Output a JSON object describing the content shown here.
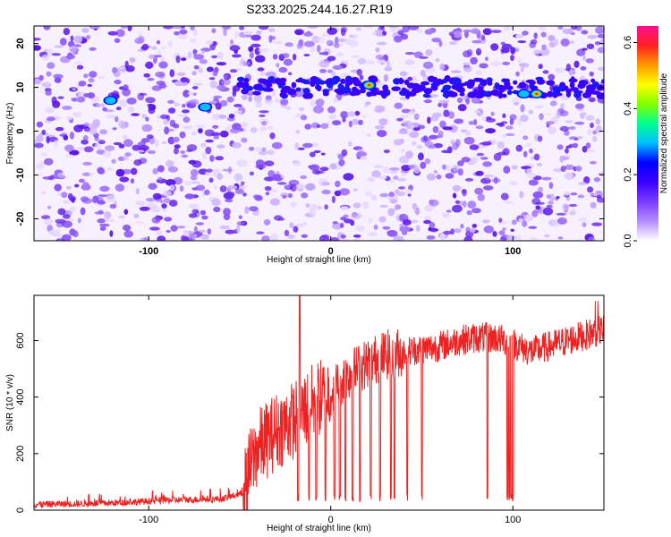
{
  "title": "S233.2025.244.16.27.R19",
  "chart_data": [
    {
      "type": "heatmap",
      "xlabel": "Height of straight line (km)",
      "ylabel": "Frequency (Hz)",
      "xlim": [
        -163,
        150
      ],
      "ylim": [
        -25,
        24
      ],
      "x_ticks": [
        -100,
        0,
        100
      ],
      "y_ticks": [
        -20,
        -10,
        0,
        10,
        20
      ],
      "colorbar": {
        "label": "Normalized spectral amplitude",
        "range": [
          0.0,
          0.65
        ],
        "ticks": [
          0.0,
          0.2,
          0.4,
          0.6
        ],
        "tick_labels": [
          "0.0",
          "0.2",
          "0.4",
          "0.6"
        ],
        "colors": [
          "#ffffff",
          "#b48cff",
          "#7a3cff",
          "#3a00ff",
          "#0000ff",
          "#00bfff",
          "#00ff90",
          "#80ff00",
          "#ffff00",
          "#ff9900",
          "#ff2020",
          "#ff1090"
        ]
      },
      "band": {
        "frequency": 10,
        "x_range": [
          -50,
          150
        ],
        "peaks": [
          {
            "x": 21,
            "y": 10.5,
            "amplitude": 0.62
          },
          {
            "x": 113,
            "y": 8.5,
            "amplitude": 0.55
          },
          {
            "x": -121,
            "y": 7.0,
            "amplitude": 0.3
          },
          {
            "x": -69,
            "y": 5.5,
            "amplitude": 0.3
          },
          {
            "x": 106,
            "y": 8.5,
            "amplitude": 0.3
          }
        ]
      }
    },
    {
      "type": "line",
      "xlabel": "Height of straight line (km)",
      "ylabel": "SNR (10 * v/v)",
      "xlim": [
        -163,
        150
      ],
      "ylim": [
        0,
        760
      ],
      "x_ticks": [
        -100,
        0,
        100
      ],
      "y_ticks": [
        0,
        200,
        400,
        600
      ],
      "color": "#ee2222",
      "profile": [
        [
          -163,
          20
        ],
        [
          -120,
          25
        ],
        [
          -90,
          35
        ],
        [
          -60,
          40
        ],
        [
          -48,
          60
        ],
        [
          -45,
          140
        ],
        [
          -40,
          220
        ],
        [
          -30,
          280
        ],
        [
          -20,
          320
        ],
        [
          -10,
          380
        ],
        [
          0,
          420
        ],
        [
          10,
          480
        ],
        [
          20,
          520
        ],
        [
          30,
          550
        ],
        [
          40,
          560
        ],
        [
          50,
          570
        ],
        [
          60,
          580
        ],
        [
          70,
          600
        ],
        [
          80,
          610
        ],
        [
          90,
          610
        ],
        [
          100,
          590
        ],
        [
          110,
          560
        ],
        [
          120,
          580
        ],
        [
          130,
          600
        ],
        [
          140,
          620
        ],
        [
          150,
          640
        ]
      ],
      "dips": [
        -18,
        -12,
        -8,
        -3,
        2,
        5,
        8,
        12,
        16,
        22,
        27,
        33,
        35,
        42,
        50,
        86,
        97,
        98,
        99,
        100
      ]
    }
  ]
}
